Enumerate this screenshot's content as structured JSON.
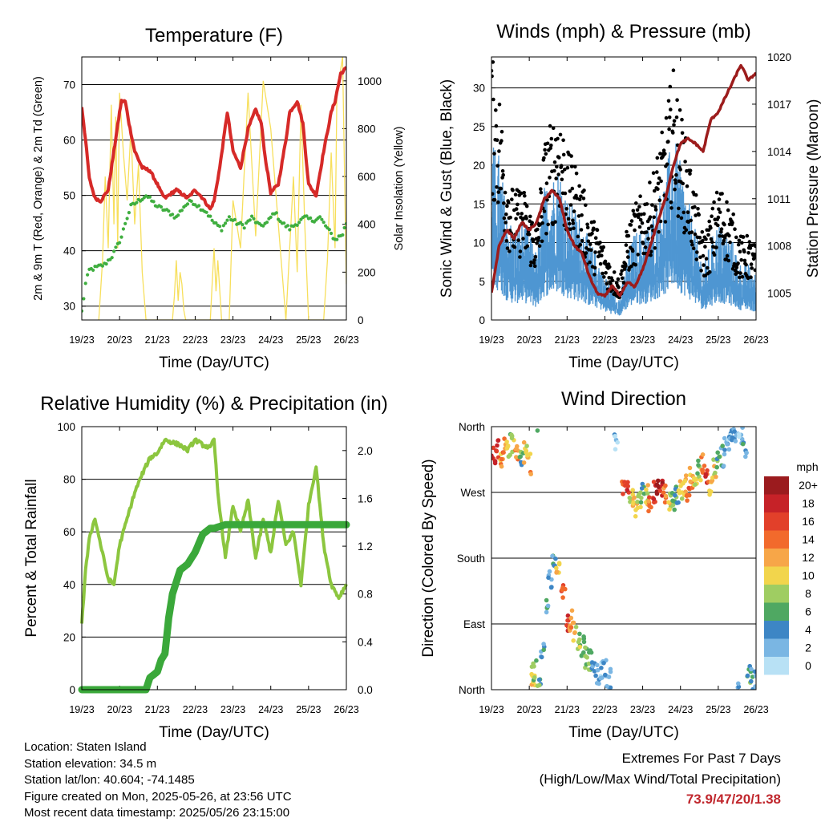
{
  "x_ticks": [
    "19/23",
    "20/23",
    "21/23",
    "22/23",
    "23/23",
    "24/23",
    "25/23",
    "26/23"
  ],
  "chart_data": [
    {
      "type": "line",
      "title": "Temperature (F)",
      "xlabel": "Time (Day/UTC)",
      "ylabel": "2m & 9m T (Red, Orange) & 2m Td (Green)",
      "y2label": "Solar Insolation (Yellow)",
      "x_range_days": [
        0,
        7
      ],
      "ylim": [
        27.5,
        75
      ],
      "y_ticks": [
        30,
        40,
        50,
        60,
        70
      ],
      "y2lim": [
        0,
        1100
      ],
      "y2_ticks": [
        0,
        200,
        400,
        600,
        800,
        1000
      ],
      "grid": "horizontal",
      "series": [
        {
          "color": "#d62a28",
          "x": [
            0,
            0.1,
            0.2,
            0.35,
            0.5,
            0.7,
            0.85,
            1.0,
            1.05,
            1.15,
            1.25,
            1.4,
            1.6,
            1.8,
            2.0,
            2.1,
            2.2,
            2.5,
            2.8,
            3.0,
            3.2,
            3.4,
            3.5,
            3.65,
            3.75,
            3.85,
            4.0,
            4.2,
            4.4,
            4.6,
            4.75,
            4.85,
            5.0,
            5.2,
            5.4,
            5.5,
            5.7,
            5.85,
            6.0,
            6.2,
            6.4,
            6.6,
            6.7,
            6.85,
            7.0
          ],
          "values": [
            66,
            60,
            53,
            49.5,
            49,
            51,
            58,
            65,
            67,
            67,
            63,
            58,
            55,
            54.5,
            52,
            50.5,
            49.5,
            51,
            49.5,
            51,
            49.5,
            47.5,
            49,
            55,
            60,
            65,
            58,
            55,
            62,
            65.5,
            63,
            57,
            50.5,
            52,
            60,
            65,
            67,
            63,
            52,
            50,
            58,
            65,
            67,
            72,
            73
          ]
        },
        {
          "color": "#3fae3f",
          "x": [
            0,
            0.1,
            0.2,
            0.4,
            0.6,
            0.8,
            0.95,
            1.05,
            1.15,
            1.3,
            1.5,
            1.7,
            2.0,
            2.3,
            2.5,
            2.7,
            2.9,
            3.1,
            3.3,
            3.5,
            3.7,
            3.9,
            4.1,
            4.3,
            4.5,
            4.7,
            4.9,
            5.1,
            5.3,
            5.5,
            5.7,
            5.9,
            6.1,
            6.3,
            6.5,
            6.7,
            6.9,
            7.0
          ],
          "values": [
            29,
            34,
            36.5,
            37,
            37.5,
            39,
            41,
            42.5,
            45,
            48,
            49,
            50,
            48,
            47,
            46,
            48,
            49,
            48,
            47,
            45,
            44,
            46,
            45,
            44.5,
            46,
            44.5,
            45,
            47,
            45,
            44,
            45,
            46,
            45.5,
            46,
            44,
            42,
            43,
            45
          ]
        },
        {
          "color": "#f7df5c",
          "y_axis": "right",
          "x": [
            0.45,
            0.55,
            0.62,
            0.7,
            0.78,
            0.85,
            0.9,
            0.95,
            1.0,
            1.1,
            1.2,
            1.3,
            1.4,
            1.5,
            1.6,
            1.7,
            1.9,
            2.4,
            2.45,
            2.5,
            2.55,
            2.6,
            2.65,
            2.7,
            2.75,
            3.0,
            3.4,
            3.45,
            3.5,
            3.55,
            3.6,
            3.7,
            3.8,
            3.9,
            4.0,
            4.2,
            4.4,
            4.6,
            4.8,
            5.0,
            5.4,
            5.5,
            5.6,
            5.7,
            5.8,
            5.9,
            6.0,
            6.05,
            6.4,
            6.5,
            6.6,
            6.7,
            6.75,
            6.8,
            6.9,
            7.0
          ],
          "values": [
            0,
            250,
            600,
            300,
            900,
            400,
            850,
            300,
            950,
            700,
            500,
            800,
            400,
            650,
            200,
            0,
            0,
            0,
            100,
            250,
            80,
            200,
            150,
            40,
            0,
            0,
            0,
            150,
            300,
            120,
            250,
            0,
            0,
            0,
            500,
            300,
            950,
            350,
            1000,
            800,
            0,
            300,
            600,
            200,
            900,
            400,
            0,
            0,
            0,
            250,
            700,
            300,
            950,
            1000,
            1100,
            150
          ]
        }
      ]
    },
    {
      "type": "scatter",
      "title": "Winds (mph) & Pressure (mb)",
      "xlabel": "Time (Day/UTC)",
      "ylabel": "Sonic Wind & Gust (Blue, Black)",
      "y2label": "Station Pressure (Maroon)",
      "x_range_days": [
        0,
        7
      ],
      "ylim": [
        0,
        34
      ],
      "y_ticks": [
        0,
        5,
        10,
        15,
        20,
        25,
        30
      ],
      "y2lim": [
        1003.3,
        1020
      ],
      "y2_ticks": [
        1005,
        1008,
        1011,
        1014,
        1017,
        1020
      ],
      "grid": "horizontal",
      "series": [
        {
          "color": "#4f97d3",
          "kind": "wind",
          "x": [
            0,
            0.2,
            0.4,
            0.6,
            0.8,
            1.0,
            1.2,
            1.4,
            1.6,
            1.8,
            2.0,
            2.2,
            2.4,
            2.6,
            2.8,
            3.0,
            3.2,
            3.4,
            3.6,
            3.8,
            4.0,
            4.2,
            4.4,
            4.6,
            4.8,
            5.0,
            5.2,
            5.4,
            5.6,
            5.8,
            6.0,
            6.2,
            6.4,
            6.6,
            6.8,
            7.0
          ],
          "values": [
            16,
            15,
            10,
            8,
            9,
            8,
            6,
            12,
            13,
            14,
            11,
            10,
            9,
            7,
            6,
            4,
            3,
            2,
            6,
            8,
            8,
            9,
            11,
            13,
            17,
            14,
            11,
            8,
            5,
            7,
            9,
            8,
            7,
            5,
            5,
            4
          ]
        },
        {
          "color": "#000000",
          "kind": "gust",
          "x": [
            0,
            0.2,
            0.4,
            0.6,
            0.8,
            1.0,
            1.2,
            1.4,
            1.6,
            1.8,
            2.0,
            2.2,
            2.4,
            2.6,
            2.8,
            3.0,
            3.2,
            3.4,
            3.6,
            3.8,
            4.0,
            4.2,
            4.4,
            4.6,
            4.8,
            5.0,
            5.2,
            5.4,
            5.6,
            5.8,
            6.0,
            6.2,
            6.4,
            6.6,
            6.8,
            7.0
          ],
          "values": [
            25,
            22,
            15,
            12,
            13,
            11,
            9,
            17,
            19,
            21,
            16,
            15,
            13,
            10,
            9,
            7,
            5,
            4,
            9,
            11,
            12,
            13,
            16,
            19,
            24,
            20,
            16,
            12,
            8,
            10,
            13,
            12,
            10,
            8,
            8,
            7
          ]
        },
        {
          "color": "#9c1c1c",
          "kind": "pressure",
          "y_axis": "right",
          "x": [
            0,
            0.2,
            0.4,
            0.6,
            0.8,
            1.0,
            1.2,
            1.4,
            1.6,
            1.8,
            2.0,
            2.2,
            2.4,
            2.6,
            2.8,
            3.0,
            3.2,
            3.4,
            3.6,
            3.8,
            4.0,
            4.2,
            4.4,
            4.6,
            4.8,
            5.0,
            5.2,
            5.4,
            5.6,
            5.8,
            6.0,
            6.2,
            6.4,
            6.6,
            6.8,
            7.0
          ],
          "values": [
            1005,
            1008,
            1009,
            1008.5,
            1009.5,
            1009,
            1009.5,
            1011,
            1011.5,
            1011,
            1009,
            1008,
            1007.5,
            1006,
            1005,
            1004.8,
            1005.5,
            1004.8,
            1005.7,
            1005.4,
            1006.5,
            1008,
            1009.5,
            1011,
            1013,
            1014.5,
            1014.8,
            1014.5,
            1014,
            1016,
            1016.5,
            1017.5,
            1018.5,
            1019.5,
            1018.5,
            1019
          ]
        }
      ]
    },
    {
      "type": "line",
      "title": "Relative Humidity (%) & Precipitation (in)",
      "xlabel": "Time (Day/UTC)",
      "ylabel": "Percent & Total Rainfall",
      "x_range_days": [
        0,
        7
      ],
      "ylim": [
        0,
        100
      ],
      "y_ticks": [
        0,
        20,
        40,
        60,
        80,
        100
      ],
      "y2lim": [
        0,
        2.2
      ],
      "y2_ticks": [
        "0.0",
        "0.4",
        "0.8",
        "1.2",
        "1.6",
        "2.0"
      ],
      "grid": "horizontal",
      "series": [
        {
          "color": "#8cc63f",
          "x": [
            0,
            0.1,
            0.2,
            0.35,
            0.5,
            0.7,
            0.85,
            1.0,
            1.2,
            1.4,
            1.6,
            1.8,
            2.0,
            2.2,
            2.4,
            2.6,
            2.8,
            3.0,
            3.2,
            3.4,
            3.5,
            3.6,
            3.8,
            4.0,
            4.2,
            4.4,
            4.6,
            4.8,
            5.0,
            5.2,
            5.4,
            5.6,
            5.8,
            6.0,
            6.2,
            6.4,
            6.6,
            6.8,
            7.0
          ],
          "values": [
            25,
            45,
            58,
            65,
            55,
            42,
            40,
            55,
            65,
            75,
            82,
            88,
            90,
            95,
            94,
            93,
            91,
            95,
            93,
            92,
            95,
            75,
            50,
            70,
            60,
            72,
            50,
            65,
            52,
            72,
            55,
            60,
            40,
            70,
            85,
            55,
            40,
            35,
            40
          ]
        },
        {
          "color": "#3aa83a",
          "y_axis": "right",
          "x": [
            0,
            0.5,
            1.0,
            1.5,
            1.7,
            1.8,
            2.0,
            2.1,
            2.2,
            2.3,
            2.4,
            2.5,
            2.6,
            2.8,
            3.0,
            3.2,
            3.4,
            3.5,
            3.8,
            4.5,
            5.5,
            6.5,
            7.0
          ],
          "values": [
            0,
            0,
            0,
            0,
            0,
            0.1,
            0.15,
            0.25,
            0.3,
            0.6,
            0.8,
            0.9,
            1.0,
            1.05,
            1.15,
            1.3,
            1.35,
            1.35,
            1.38,
            1.38,
            1.38,
            1.38,
            1.38
          ]
        }
      ]
    },
    {
      "type": "scatter",
      "title": "Wind Direction",
      "xlabel": "Time (Day/UTC)",
      "ylabel": "Direction (Colored By Speed)",
      "x_range_days": [
        0,
        7
      ],
      "ylim": [
        0,
        360
      ],
      "y_ticks": [
        "North",
        "East",
        "South",
        "West",
        "North"
      ],
      "grid": "horizontal",
      "colorbar": {
        "title": "mph",
        "labels": [
          "20+",
          "18",
          "16",
          "14",
          "12",
          "10",
          "8",
          "6",
          "4",
          "2",
          "0"
        ],
        "colors": [
          "#9b1b1e",
          "#c62228",
          "#e2402a",
          "#f26a2c",
          "#f7a648",
          "#f2d54c",
          "#9fcd62",
          "#4fa862",
          "#3d86c5",
          "#7ab6e3",
          "#b8e1f5"
        ]
      },
      "series": [
        {
          "name": "direction",
          "x": [
            0.05,
            0.15,
            0.25,
            0.35,
            0.45,
            0.55,
            0.65,
            0.8,
            0.9,
            1.0,
            1.1,
            1.15,
            1.25,
            1.35,
            1.45,
            1.55,
            1.65,
            1.75,
            1.9,
            2.0,
            2.1,
            2.2,
            2.3,
            2.4,
            2.5,
            2.6,
            2.7,
            2.8,
            2.9,
            3.0,
            3.1,
            3.3,
            3.5,
            3.6,
            3.7,
            3.8,
            3.9,
            4.0,
            4.1,
            4.2,
            4.3,
            4.4,
            4.5,
            4.6,
            4.7,
            4.8,
            4.9,
            5.0,
            5.1,
            5.2,
            5.3,
            5.4,
            5.5,
            5.6,
            5.7,
            5.8,
            5.9,
            6.0,
            6.1,
            6.2,
            6.3,
            6.4,
            6.5,
            6.6,
            6.7,
            6.8,
            6.9,
            7.0
          ],
          "y": [
            320,
            330,
            315,
            335,
            325,
            340,
            320,
            320,
            325,
            310,
            20,
            25,
            5,
            50,
            120,
            150,
            180,
            170,
            140,
            90,
            95,
            80,
            70,
            60,
            45,
            40,
            30,
            20,
            25,
            30,
            15,
            340,
            270,
            280,
            260,
            250,
            260,
            270,
            265,
            250,
            270,
            275,
            280,
            265,
            255,
            260,
            265,
            275,
            280,
            270,
            290,
            280,
            300,
            310,
            295,
            280,
            300,
            310,
            320,
            330,
            340,
            350,
            355,
            345,
            330,
            20,
            15,
            10
          ],
          "speed": [
            18,
            16,
            12,
            14,
            10,
            8,
            12,
            6,
            10,
            12,
            10,
            8,
            6,
            4,
            4,
            3,
            4,
            12,
            14,
            16,
            12,
            10,
            8,
            6,
            8,
            6,
            4,
            3,
            2,
            3,
            2,
            2,
            14,
            16,
            10,
            12,
            8,
            6,
            10,
            14,
            16,
            20,
            18,
            12,
            10,
            8,
            6,
            10,
            12,
            14,
            12,
            10,
            8,
            14,
            16,
            12,
            10,
            6,
            4,
            3,
            2,
            3,
            2,
            2,
            4,
            6,
            4,
            3
          ]
        }
      ]
    }
  ],
  "info": {
    "location": "Location: Staten Island",
    "elevation": "Station elevation: 34.5 m",
    "latlon": "Station lat/lon: 40.604; -74.1485",
    "created": "Figure created on Mon, 2025-05-26, at 23:56 UTC",
    "timestamp": "Most recent data timestamp: 2025/05/26 23:15:00"
  },
  "extremes": {
    "title": "Extremes For Past 7 Days",
    "subtitle": "(High/Low/Max Wind/Total Precipitation)",
    "value": "73.9/47/20/1.38"
  }
}
